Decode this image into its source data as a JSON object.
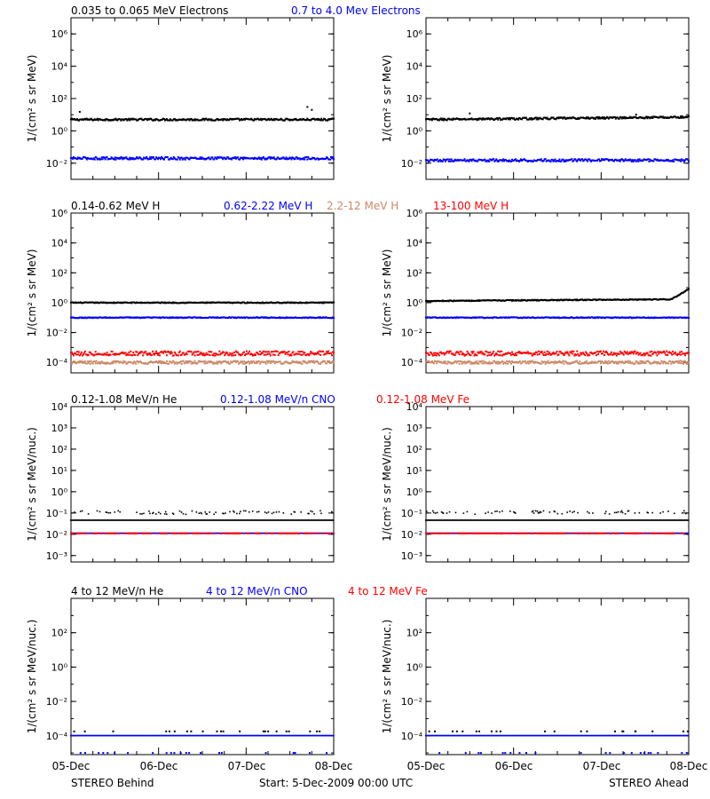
{
  "chart_data": [
    {
      "type": "scatter",
      "title_segments": [
        {
          "text": "0.035 to 0.065 MeV Electrons",
          "color": "#000000"
        },
        {
          "text": "0.7 to 4.0 Mev Electrons",
          "color": "#0000ff"
        }
      ],
      "ylabel": "1/(cm² s sr MeV)",
      "yscale": "log",
      "ylim": [
        0.001,
        10000000
      ],
      "yticks": [
        {
          "value": 0.01,
          "label": "10⁻²"
        },
        {
          "value": 1,
          "label": "10⁰"
        },
        {
          "value": 100,
          "label": "10²"
        },
        {
          "value": 10000,
          "label": "10⁴"
        },
        {
          "value": 1000000,
          "label": "10⁶"
        }
      ],
      "xlim": [
        0,
        3
      ],
      "xticks": [
        0,
        1,
        2,
        3
      ],
      "panels": [
        {
          "spacecraft": "STEREO Behind",
          "series": [
            {
              "color": "#000000",
              "level": 5,
              "spread": 0.06,
              "outliers": [
                [
                  0.1,
                  15
                ],
                [
                  2.7,
                  30
                ],
                [
                  2.75,
                  20
                ]
              ]
            },
            {
              "color": "#0000ff",
              "level": 0.02,
              "spread": 0.08
            }
          ]
        },
        {
          "spacecraft": "STEREO Ahead",
          "series": [
            {
              "color": "#000000",
              "level": 5,
              "spread": 0.06,
              "trend": 0.15,
              "outliers": [
                [
                  0.5,
                  12
                ],
                [
                  2.4,
                  10
                ]
              ]
            },
            {
              "color": "#0000ff",
              "level": 0.015,
              "spread": 0.08
            }
          ]
        }
      ]
    },
    {
      "type": "scatter",
      "title_segments": [
        {
          "text": "0.14-0.62 MeV H",
          "color": "#000000"
        },
        {
          "text": "0.62-2.22 MeV H",
          "color": "#0000ff"
        },
        {
          "text": "2.2-12 MeV H",
          "color": "#cc8866"
        },
        {
          "text": "13-100 MeV H",
          "color": "#ff0000"
        }
      ],
      "ylabel": "1/(cm² s sr MeV)",
      "yscale": "log",
      "ylim": [
        2e-05,
        1000000
      ],
      "yticks": [
        {
          "value": 0.0001,
          "label": "10⁻⁴"
        },
        {
          "value": 0.01,
          "label": "10⁻²"
        },
        {
          "value": 1,
          "label": "10⁰"
        },
        {
          "value": 100,
          "label": "10²"
        },
        {
          "value": 10000,
          "label": "10⁴"
        },
        {
          "value": 1000000,
          "label": "10⁶"
        }
      ],
      "xlim": [
        0,
        3
      ],
      "xticks": [
        0,
        1,
        2,
        3
      ],
      "panels": [
        {
          "spacecraft": "STEREO Behind",
          "series": [
            {
              "color": "#000000",
              "level": 1.0,
              "spread": 0.03
            },
            {
              "color": "#0000ff",
              "level": 0.1,
              "spread": 0.03
            },
            {
              "color": "#cc8866",
              "level": 0.0001,
              "spread": 0.1
            },
            {
              "color": "#ff0000",
              "level": 0.0004,
              "spread": 0.15
            }
          ]
        },
        {
          "spacecraft": "STEREO Ahead",
          "series": [
            {
              "color": "#000000",
              "level": 1.3,
              "spread": 0.03,
              "trend": 0.12,
              "rise": [
                2.8,
                1.1
              ]
            },
            {
              "color": "#0000ff",
              "level": 0.1,
              "spread": 0.03
            },
            {
              "color": "#cc8866",
              "level": 0.0001,
              "spread": 0.1
            },
            {
              "color": "#ff0000",
              "level": 0.0004,
              "spread": 0.15
            }
          ]
        }
      ]
    },
    {
      "type": "scatter",
      "title_segments": [
        {
          "text": "0.12-1.08 MeV/n He",
          "color": "#000000"
        },
        {
          "text": "0.12-1.08 MeV/n CNO",
          "color": "#0000ff"
        },
        {
          "text": "0.12-1.08 MeV Fe",
          "color": "#ff0000"
        }
      ],
      "ylabel": "1/(cm² s sr MeV/nuc.)",
      "yscale": "log",
      "ylim": [
        0.0005,
        10000
      ],
      "yticks": [
        {
          "value": 0.001,
          "label": "10⁻³"
        },
        {
          "value": 0.01,
          "label": "10⁻²"
        },
        {
          "value": 0.1,
          "label": "10⁻¹"
        },
        {
          "value": 1,
          "label": "10⁰"
        },
        {
          "value": 10,
          "label": "10¹"
        },
        {
          "value": 100,
          "label": "10²"
        },
        {
          "value": 1000,
          "label": "10³"
        },
        {
          "value": 10000,
          "label": "10⁴"
        }
      ],
      "xlim": [
        0,
        3
      ],
      "xticks": [
        0,
        1,
        2,
        3
      ],
      "panels": [
        {
          "spacecraft": "STEREO Behind",
          "series": [
            {
              "color": "#000000",
              "level": 0.045,
              "spread": 0.0,
              "dense": true,
              "upper": 0.1
            },
            {
              "color": "#0000ff",
              "level": 0.011,
              "spread": 0.0,
              "dense": true
            },
            {
              "color": "#ff0000",
              "level": 0.011,
              "spread": 0.0,
              "partial": true
            }
          ]
        },
        {
          "spacecraft": "STEREO Ahead",
          "series": [
            {
              "color": "#000000",
              "level": 0.045,
              "spread": 0.0,
              "dense": true,
              "upper": 0.1
            },
            {
              "color": "#0000ff",
              "level": 0.011,
              "spread": 0.0,
              "dense": true
            },
            {
              "color": "#ff0000",
              "level": 0.011,
              "spread": 0.0,
              "partial": true
            }
          ]
        }
      ]
    },
    {
      "type": "scatter",
      "title_segments": [
        {
          "text": "4 to 12 MeV/n He",
          "color": "#000000"
        },
        {
          "text": "4 to 12 MeV/n CNO",
          "color": "#0000ff"
        },
        {
          "text": "4 to 12 MeV Fe",
          "color": "#ff0000"
        }
      ],
      "ylabel": "1/(cm² s sr MeV/nuc.)",
      "yscale": "log",
      "ylim": [
        8e-06,
        10000
      ],
      "yticks": [
        {
          "value": 0.0001,
          "label": "10⁻⁴"
        },
        {
          "value": 0.01,
          "label": "10⁻²"
        },
        {
          "value": 1,
          "label": "10⁰"
        },
        {
          "value": 100,
          "label": "10²"
        }
      ],
      "xlim": [
        0,
        3
      ],
      "xticks": [
        0,
        1,
        2,
        3
      ],
      "panels": [
        {
          "spacecraft": "STEREO Behind",
          "series": [
            {
              "color": "#0000ff",
              "level": 0.0001,
              "spread": 0.0,
              "dense": true
            },
            {
              "color": "#000000",
              "level": 0.00018,
              "spread": 0.0,
              "sparse": true
            },
            {
              "color": "#0000ff",
              "level": 1e-05,
              "spread": 0.0,
              "sparse": true
            }
          ]
        },
        {
          "spacecraft": "STEREO Ahead",
          "series": [
            {
              "color": "#0000ff",
              "level": 0.0001,
              "spread": 0.0,
              "dense": true
            },
            {
              "color": "#000000",
              "level": 0.00018,
              "spread": 0.0,
              "sparse": true
            },
            {
              "color": "#0000ff",
              "level": 1e-05,
              "spread": 0.0,
              "sparse": true
            }
          ]
        }
      ]
    }
  ],
  "x_axis": {
    "tick_labels": [
      "05-Dec",
      "06-Dec",
      "07-Dec",
      "08-Dec"
    ]
  },
  "footer": {
    "left": "STEREO Behind",
    "center": "Start:  5-Dec-2009 00:00 UTC",
    "right": "STEREO Ahead"
  }
}
